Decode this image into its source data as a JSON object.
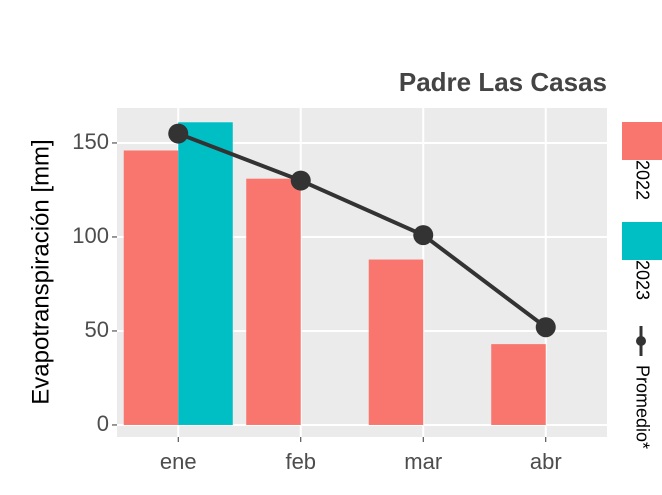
{
  "chart_data": {
    "type": "bar",
    "title": "Padre Las Casas",
    "y_label": "Evapotranspiración [mm]",
    "categories": [
      "ene",
      "feb",
      "mar",
      "abr"
    ],
    "series": [
      {
        "name": "2022",
        "type": "bar",
        "color": "#f8766d",
        "values": [
          146,
          131,
          88,
          43
        ]
      },
      {
        "name": "2023",
        "type": "bar",
        "color": "#00bfc4",
        "values": [
          161,
          null,
          null,
          null
        ]
      },
      {
        "name": "Promedio*",
        "type": "line",
        "color": "#333333",
        "values": [
          155,
          130,
          101,
          52
        ]
      }
    ],
    "ylim": [
      -6.4,
      168.6
    ],
    "yticks": [
      0,
      50,
      100,
      150
    ],
    "grid": true,
    "legend": "right"
  }
}
